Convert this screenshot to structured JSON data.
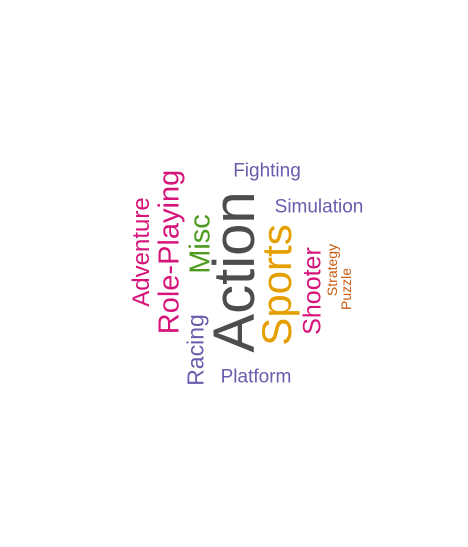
{
  "word_cloud": {
    "words": [
      {
        "text": "Action",
        "color": "#4d4d4d",
        "orientation": "vertical"
      },
      {
        "text": "Sports",
        "color": "#e69f00",
        "orientation": "vertical"
      },
      {
        "text": "Role-Playing",
        "color": "#d6147a",
        "orientation": "vertical"
      },
      {
        "text": "Misc",
        "color": "#4d9a1e",
        "orientation": "vertical"
      },
      {
        "text": "Adventure",
        "color": "#d6147a",
        "orientation": "vertical"
      },
      {
        "text": "Shooter",
        "color": "#d6147a",
        "orientation": "vertical"
      },
      {
        "text": "Racing",
        "color": "#6a5bac",
        "orientation": "vertical"
      },
      {
        "text": "Fighting",
        "color": "#6a5bac",
        "orientation": "horizontal"
      },
      {
        "text": "Simulation",
        "color": "#6a5bac",
        "orientation": "horizontal"
      },
      {
        "text": "Platform",
        "color": "#6a5bac",
        "orientation": "horizontal"
      },
      {
        "text": "Strategy",
        "color": "#c75a10",
        "orientation": "vertical"
      },
      {
        "text": "Puzzle",
        "color": "#c75a10",
        "orientation": "vertical"
      }
    ]
  }
}
